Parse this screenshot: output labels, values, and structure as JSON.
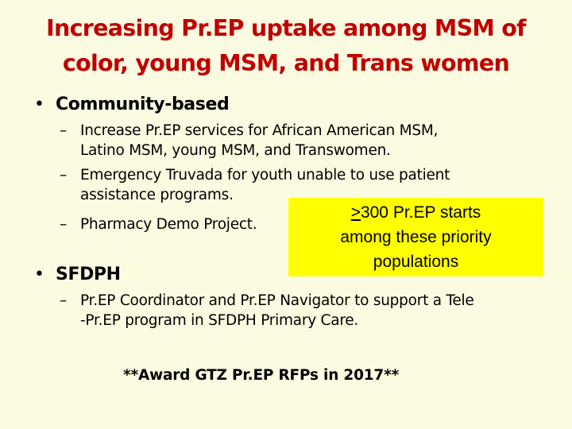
{
  "title": {
    "line1": "Increasing Pr.EP uptake among MSM of",
    "line2": "color, young MSM, and Trans women"
  },
  "bullets": [
    {
      "symbol": "•",
      "label": "Community-based",
      "items": [
        {
          "dash": "–",
          "line1": "Increase Pr.EP services for African American MSM,",
          "line2": "Latino MSM, young MSM, and Transwomen."
        },
        {
          "dash": "–",
          "line1": "Emergency Truvada for youth unable to use patient",
          "line2": "assistance programs."
        },
        {
          "dash": "–",
          "line1": "Pharmacy Demo Project."
        }
      ]
    },
    {
      "symbol": "•",
      "label": "SFDPH",
      "items": [
        {
          "dash": "–",
          "line1": "Pr.EP Coordinator and Pr.EP Navigator to support a Tele",
          "line2": "-Pr.EP program in SFDPH Primary Care."
        }
      ]
    }
  ],
  "callout": {
    "symbol": ">",
    "line1_rest": "300 Pr.EP starts",
    "line2": "among these priority",
    "line3": "populations",
    "background": "#ffff00"
  },
  "footer": "**Award GTZ Pr.EP RFPs in 2017**",
  "colors": {
    "title": "#c00000",
    "background": "#fbfbe2"
  }
}
